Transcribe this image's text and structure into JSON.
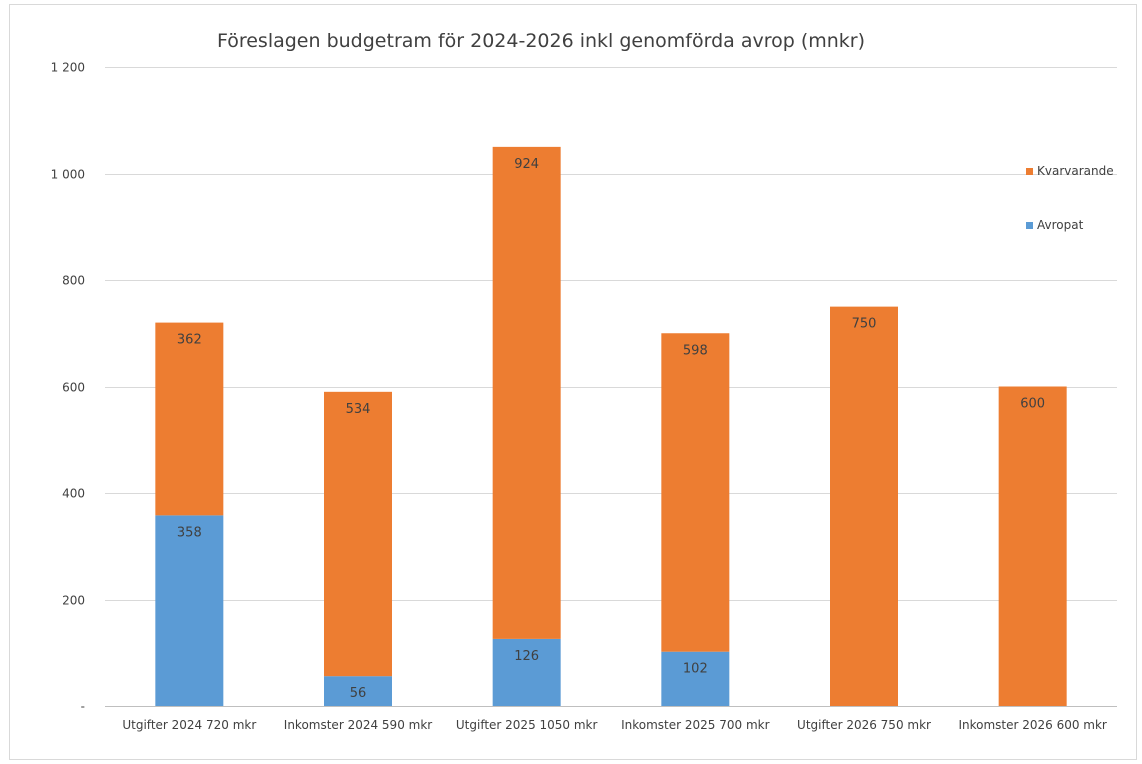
{
  "chart_data": {
    "type": "bar",
    "stacked": true,
    "title": "Föreslagen budgetram för 2024-2026 inkl genomförda avrop (mnkr)",
    "xlabel": "",
    "ylabel": "",
    "categories": [
      "Utgifter 2024 720 mkr",
      "Inkomster 2024 590 mkr",
      "Utgifter 2025 1050 mkr",
      "Inkomster 2025 700 mkr",
      "Utgifter 2026 750 mkr",
      "Inkomster 2026 600 mkr"
    ],
    "series": [
      {
        "name": "Avropat",
        "color": "#5b9bd5",
        "values": [
          358,
          56,
          126,
          102,
          0,
          0
        ],
        "labels": [
          "358",
          "56",
          "126",
          "102",
          "",
          ""
        ]
      },
      {
        "name": "Kvarvarande",
        "color": "#ed7d31",
        "values": [
          362,
          534,
          924,
          598,
          750,
          600
        ],
        "labels": [
          "362",
          "534",
          "924",
          "598",
          "750",
          "600"
        ]
      }
    ],
    "ylim": [
      0,
      1200
    ],
    "yticks": [
      0,
      200,
      400,
      600,
      800,
      1000,
      1200
    ],
    "ytick_labels": [
      "-",
      "200",
      "400",
      "600",
      "800",
      "1 000",
      "1 200"
    ],
    "grid": true,
    "legend_position": "right",
    "legend_order": [
      "Kvarvarande",
      "Avropat"
    ]
  }
}
